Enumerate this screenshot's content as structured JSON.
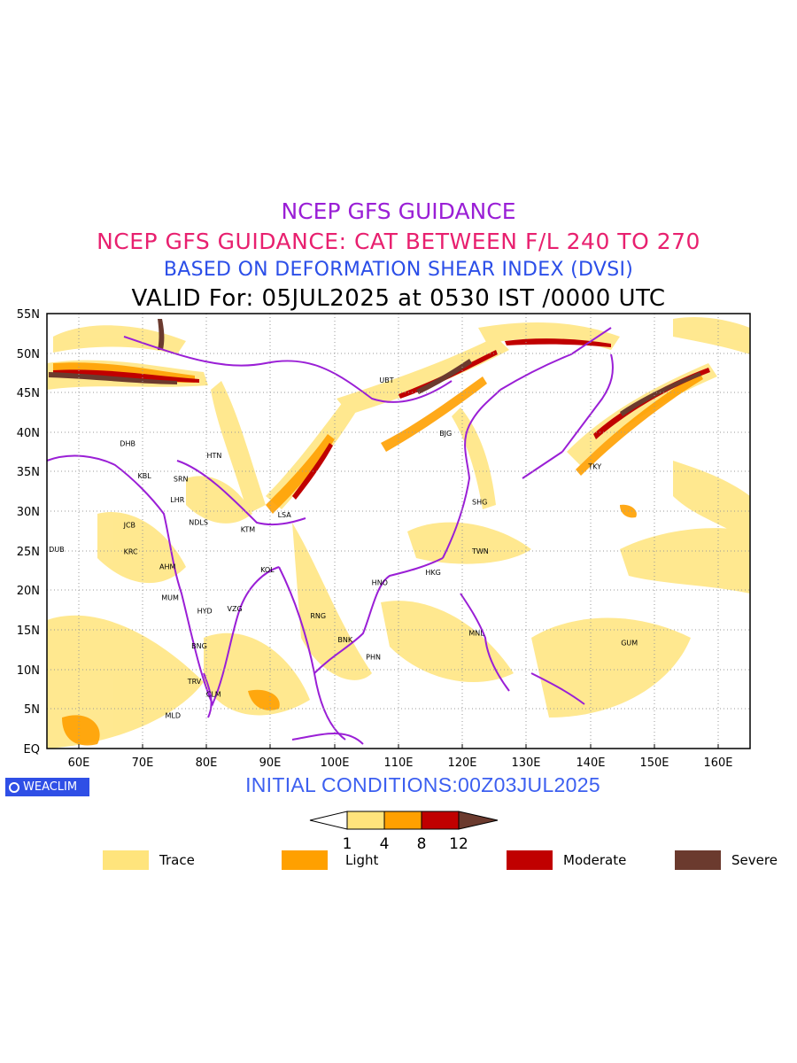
{
  "titles": {
    "line1": "NCEP GFS GUIDANCE",
    "line2": "NCEP GFS GUIDANCE: CAT BETWEEN F/L 240 TO 270",
    "line3": "BASED ON DEFORMATION SHEAR INDEX (DVSI)",
    "line4": "VALID For: 05JUL2025 at 0530 IST /0000 UTC"
  },
  "map": {
    "lat_labels": [
      "55N",
      "50N",
      "45N",
      "40N",
      "35N",
      "30N",
      "25N",
      "20N",
      "15N",
      "10N",
      "5N",
      "EQ"
    ],
    "lon_labels": [
      "60E",
      "70E",
      "80E",
      "90E",
      "100E",
      "110E",
      "120E",
      "130E",
      "140E",
      "150E",
      "160E"
    ],
    "cities": [
      {
        "code": "UBT",
        "lon": 107.0,
        "lat": 46.6
      },
      {
        "code": "BJG",
        "lon": 116.4,
        "lat": 39.9
      },
      {
        "code": "DHB",
        "lon": 66.4,
        "lat": 38.6
      },
      {
        "code": "HTN",
        "lon": 80.0,
        "lat": 37.1
      },
      {
        "code": "KBL",
        "lon": 69.2,
        "lat": 34.5
      },
      {
        "code": "SRN",
        "lon": 74.8,
        "lat": 34.1
      },
      {
        "code": "TKY",
        "lon": 139.7,
        "lat": 35.7
      },
      {
        "code": "SHG",
        "lon": 121.5,
        "lat": 31.2
      },
      {
        "code": "LSA",
        "lon": 91.1,
        "lat": 29.6
      },
      {
        "code": "LHR",
        "lon": 74.3,
        "lat": 31.5
      },
      {
        "code": "JCB",
        "lon": 67.0,
        "lat": 28.3
      },
      {
        "code": "NDLS",
        "lon": 77.2,
        "lat": 28.6
      },
      {
        "code": "KTM",
        "lon": 85.3,
        "lat": 27.7
      },
      {
        "code": "DUB",
        "lon": 55.3,
        "lat": 25.2
      },
      {
        "code": "KRC",
        "lon": 67.0,
        "lat": 24.9
      },
      {
        "code": "TWN",
        "lon": 121.5,
        "lat": 25.0
      },
      {
        "code": "AHM",
        "lon": 72.6,
        "lat": 23.0
      },
      {
        "code": "KOL",
        "lon": 88.4,
        "lat": 22.6
      },
      {
        "code": "HNO",
        "lon": 105.8,
        "lat": 21.0
      },
      {
        "code": "HKG",
        "lon": 114.2,
        "lat": 22.3
      },
      {
        "code": "MUM",
        "lon": 72.9,
        "lat": 19.1
      },
      {
        "code": "HYD",
        "lon": 78.5,
        "lat": 17.4
      },
      {
        "code": "VZG",
        "lon": 83.2,
        "lat": 17.7
      },
      {
        "code": "RNG",
        "lon": 96.2,
        "lat": 16.8
      },
      {
        "code": "BNK",
        "lon": 100.5,
        "lat": 13.8
      },
      {
        "code": "MNL",
        "lon": 121.0,
        "lat": 14.6
      },
      {
        "code": "GUM",
        "lon": 144.8,
        "lat": 13.4
      },
      {
        "code": "PHN",
        "lon": 104.9,
        "lat": 11.6
      },
      {
        "code": "BNG",
        "lon": 77.6,
        "lat": 13.0
      },
      {
        "code": "TRV",
        "lon": 77.0,
        "lat": 8.5
      },
      {
        "code": "CLM",
        "lon": 79.9,
        "lat": 6.9
      },
      {
        "code": "MLD",
        "lon": 73.5,
        "lat": 4.2
      }
    ]
  },
  "brand": "WEACLIM",
  "initial_conditions": "INITIAL CONDITIONS:00Z03JUL2025",
  "colorbar": {
    "ticks": [
      "1",
      "4",
      "8",
      "12"
    ],
    "colors": [
      "#ffe47c",
      "#ffa000",
      "#c00000",
      "#6b3a2e"
    ]
  },
  "legend": [
    {
      "label": "Trace",
      "color": "#ffe47c"
    },
    {
      "label": "Light",
      "color": "#ffa000"
    },
    {
      "label": "Moderate",
      "color": "#c00000"
    },
    {
      "label": "Severe",
      "color": "#6b3a2e"
    }
  ]
}
